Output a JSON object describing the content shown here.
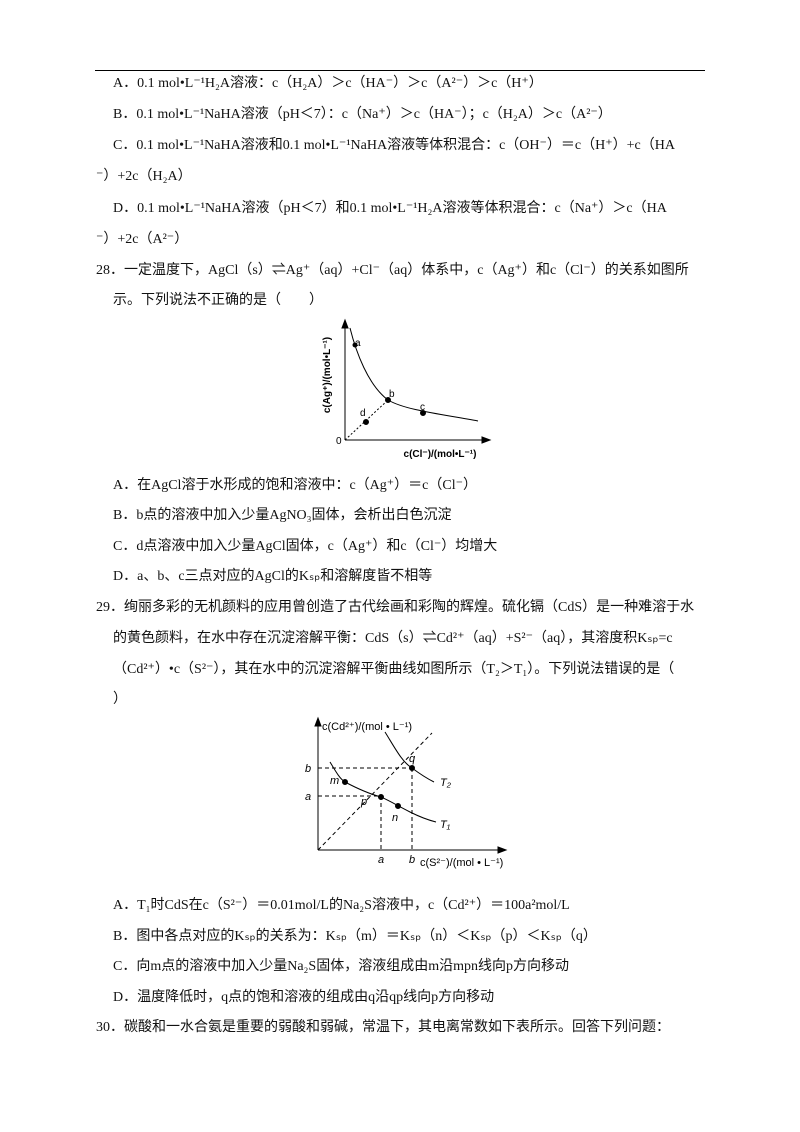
{
  "q27": {
    "options": [
      [
        "A．0.1 mol•L⁻¹H₂A溶液：c（H₂A）＞c（HA⁻）＞c（A²⁻）＞c（H⁺）"
      ],
      [
        "B．0.1 mol•L⁻¹NaHA溶液（pH＜7）：c（Na⁺）＞c（HA⁻）；c（H₂A）＞c（A²⁻）"
      ],
      [
        "C．0.1 mol•L⁻¹NaHA溶液和0.1 mol•L⁻¹NaHA溶液等体积混合：c（OH⁻）＝c（H⁺）+c（HA",
        "⁻）+2c（H₂A）"
      ],
      [
        "D．0.1 mol•L⁻¹NaHA溶液（pH＜7）和0.1 mol•L⁻¹H₂A溶液等体积混合：c（Na⁺）＞c（HA",
        "⁻）+2c（A²⁻）"
      ]
    ]
  },
  "q28": {
    "stem": [
      "28．一定温度下，AgCl（s）⇌Ag⁺（aq）+Cl⁻（aq）体系中，c（Ag⁺）和c（Cl⁻）的关系如图所",
      "示。下列说法不正确的是（　　）"
    ],
    "figure": {
      "y_label": "c(Ag⁺)/(mol•L⁻¹)",
      "x_label": "c(Cl⁻)/(mol•L⁻¹)",
      "origin": "0",
      "points": [
        "a",
        "b",
        "c",
        "d"
      ]
    },
    "options": [
      "A．在AgCl溶于水形成的饱和溶液中：c（Ag⁺）＝c（Cl⁻）",
      "B．b点的溶液中加入少量AgNO₃固体，会析出白色沉淀",
      "C．d点溶液中加入少量AgCl固体，c（Ag⁺）和c（Cl⁻）均增大",
      "D．a、b、c三点对应的AgCl的Kₛₚ和溶解度皆不相等"
    ]
  },
  "q29": {
    "stem": [
      "29．绚丽多彩的无机颜料的应用曾创造了古代绘画和彩陶的辉煌。硫化镉（CdS）是一种难溶于水",
      "的黄色颜料，在水中存在沉淀溶解平衡：CdS（s）⇌Cd²⁺（aq）+S²⁻（aq），其溶度积Kₛₚ=c",
      "（Cd²⁺）•c（S²⁻），其在水中的沉淀溶解平衡曲线如图所示（T₂＞T₁）。下列说法错误的是（",
      "）"
    ],
    "figure": {
      "y_label": "c(Cd²⁺)/(mol • L⁻¹)",
      "x_label": "c(S²⁻)/(mol • L⁻¹)",
      "y_marks": [
        "b",
        "a"
      ],
      "x_marks": [
        "a",
        "b"
      ],
      "points": [
        "m",
        "q",
        "p",
        "n"
      ],
      "curves": [
        "T₂",
        "T₁"
      ]
    },
    "options": [
      "A．T₁时CdS在c（S²⁻）＝0.01mol/L的Na₂S溶液中，c（Cd²⁺）＝100a²mol/L",
      "B．图中各点对应的Kₛₚ的关系为：Kₛₚ（m）＝Kₛₚ（n）＜Kₛₚ（p）＜Kₛₚ（q）",
      "C．向m点的溶液中加入少量Na₂S固体，溶液组成由m沿mpn线向p方向移动",
      "D．温度降低时，q点的饱和溶液的组成由q沿qp线向p方向移动"
    ]
  },
  "q30": {
    "stem": "30．碳酸和一水合氨是重要的弱酸和弱碱，常温下，其电离常数如下表所示。回答下列问题："
  }
}
